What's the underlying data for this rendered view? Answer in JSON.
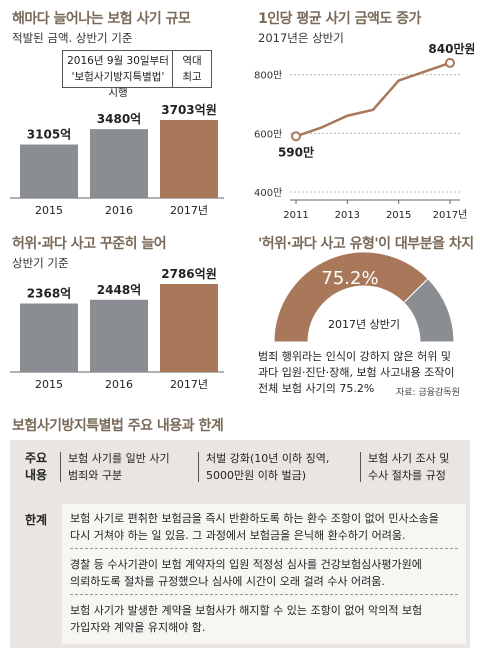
{
  "colors": {
    "gray": "#8a8d91",
    "brown": "#a9785a",
    "title": "#7a6a5a",
    "line": "#a9785a"
  },
  "panels": {
    "p1": {
      "title": "해마다 늘어나는 보험 사기 규모",
      "subtitle": "적발된 금액. 상반기 기준",
      "note1_line1": "2016년 9월 30일부터",
      "note1_line2": "'보험사기방지특별법' 시행",
      "note2_line1": "역대",
      "note2_line2": "최고"
    },
    "p2": {
      "title": "1인당 평균 사기 금액도 증가",
      "subtitle": "2017년은 상반기"
    },
    "p3": {
      "title": "허위·과다 사고 꾸준히 늘어",
      "subtitle": "상반기 기준"
    },
    "p4": {
      "title": "'허위·과다 사고 유형'이 대부분을 차지",
      "callout_line1": "범죄 행위라는 인식이 강하지 않은 허위 및",
      "callout_line2": "과다 입원·진단·장해, 보험 사고내용 조작이",
      "callout_line3": "전체 보험 사기의 75.2%",
      "source": "자료: 금융감독원"
    }
  },
  "chart_data": [
    {
      "type": "bar",
      "title": "해마다 늘어나는 보험 사기 규모",
      "subtitle": "적발된 금액. 상반기 기준",
      "categories": [
        "2015",
        "2016",
        "2017년"
      ],
      "values": [
        3105,
        3480,
        3703
      ],
      "value_labels": [
        "3105억",
        "3480억",
        "3703억원"
      ],
      "highlight_index": 2
    },
    {
      "type": "line",
      "title": "1인당 평균 사기 금액도 증가",
      "subtitle": "2017년은 상반기",
      "x": [
        2011,
        2012,
        2013,
        2014,
        2015,
        2016,
        2017
      ],
      "values": [
        590,
        620,
        660,
        680,
        780,
        810,
        840
      ],
      "yticks": [
        "400만",
        "600만",
        "800만"
      ],
      "xticks": [
        "2011",
        "2013",
        "2015",
        "2017년"
      ],
      "ylim": [
        400,
        850
      ],
      "labels": {
        "first": "590만",
        "last": "840만원"
      }
    },
    {
      "type": "bar",
      "title": "허위·과다 사고 꾸준히 늘어",
      "subtitle": "상반기 기준",
      "categories": [
        "2015",
        "2016",
        "2017년"
      ],
      "values": [
        2368,
        2448,
        2786
      ],
      "value_labels": [
        "2368억",
        "2448억",
        "2786억원"
      ],
      "highlight_index": 2
    },
    {
      "type": "pie",
      "title": "'허위·과다 사고 유형'이 대부분을 차지",
      "center_label": "2017년 상반기",
      "slices": [
        {
          "value": 75.2
        },
        {
          "value": 24.8
        }
      ],
      "value_label": "75.2%"
    }
  ],
  "table": {
    "title": "보험사기방지특별법 주요 내용과 한계",
    "main_head_1": "주요",
    "main_head_2": "내용",
    "main_items": [
      {
        "line1": "보험 사기를 일반 사기",
        "line2": "범죄와 구분"
      },
      {
        "line1": "처벌 강화(10년 이하 징역,",
        "line2": "5000만원 이하 벌금)"
      },
      {
        "line1": "보험 사기 조사 및",
        "line2": "수사 절차를 규정"
      }
    ],
    "limit_head": "한계",
    "limits": [
      {
        "line1": "보험 사기로 편취한 보험금을 즉시 반환하도록 하는 환수 조항이 없어 민사소송을",
        "line2": "다시 거쳐야 하는 일 있음. 그 과정에서 보험금을 은닉해 환수하기 어려움."
      },
      {
        "line1": "경찰 등 수사기관이 보험 계약자의 입원 적정성 심사를 건강보험심사평가원에",
        "line2": "의뢰하도록 절차를 규정했으나 심사에 시간이 오래 걸려 수사 어려움."
      },
      {
        "line1": "보험 사기가 발생한 계약을 보험사가 해지할 수 있는 조항이 없어 악의적 보험",
        "line2": "가입자와 계약을 유지해야 함."
      }
    ]
  }
}
